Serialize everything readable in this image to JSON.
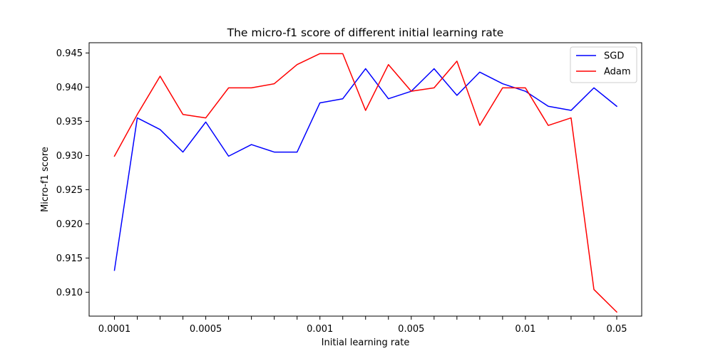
{
  "chart_data": {
    "type": "line",
    "title": "The micro-f1 score of different initial learning rate",
    "xlabel": "Initial learning rate",
    "ylabel": "Micro-f1 score",
    "x_count": 23,
    "x_tick_labels": [
      {
        "index": 0,
        "label": "0.0001"
      },
      {
        "index": 4,
        "label": "0.0005"
      },
      {
        "index": 9,
        "label": "0.001"
      },
      {
        "index": 13,
        "label": "0.005"
      },
      {
        "index": 18,
        "label": "0.01"
      },
      {
        "index": 22,
        "label": "0.05"
      }
    ],
    "y_ticks": [
      "0.910",
      "0.915",
      "0.920",
      "0.925",
      "0.930",
      "0.935",
      "0.940",
      "0.945"
    ],
    "ylim": [
      0.9065,
      0.9465
    ],
    "grid": false,
    "legend_position": "top-right",
    "series": [
      {
        "name": "SGD",
        "color": "#0000ff",
        "values": [
          0.9132,
          0.9355,
          0.9338,
          0.9305,
          0.9349,
          0.9299,
          0.9316,
          0.9305,
          0.9305,
          0.9377,
          0.9383,
          0.9427,
          0.9383,
          0.9394,
          0.9427,
          0.9388,
          0.9422,
          0.9405,
          0.9394,
          0.9372,
          0.9366,
          0.9399,
          0.9372
        ]
      },
      {
        "name": "Adam",
        "color": "#ff0000",
        "values": [
          0.9299,
          0.936,
          0.9416,
          0.936,
          0.9355,
          0.9399,
          0.9399,
          0.9405,
          0.9433,
          0.9449,
          0.9449,
          0.9366,
          0.9433,
          0.9394,
          0.9399,
          0.9438,
          0.9344,
          0.9399,
          0.9399,
          0.9344,
          0.9355,
          0.9104,
          0.9071
        ]
      }
    ]
  }
}
